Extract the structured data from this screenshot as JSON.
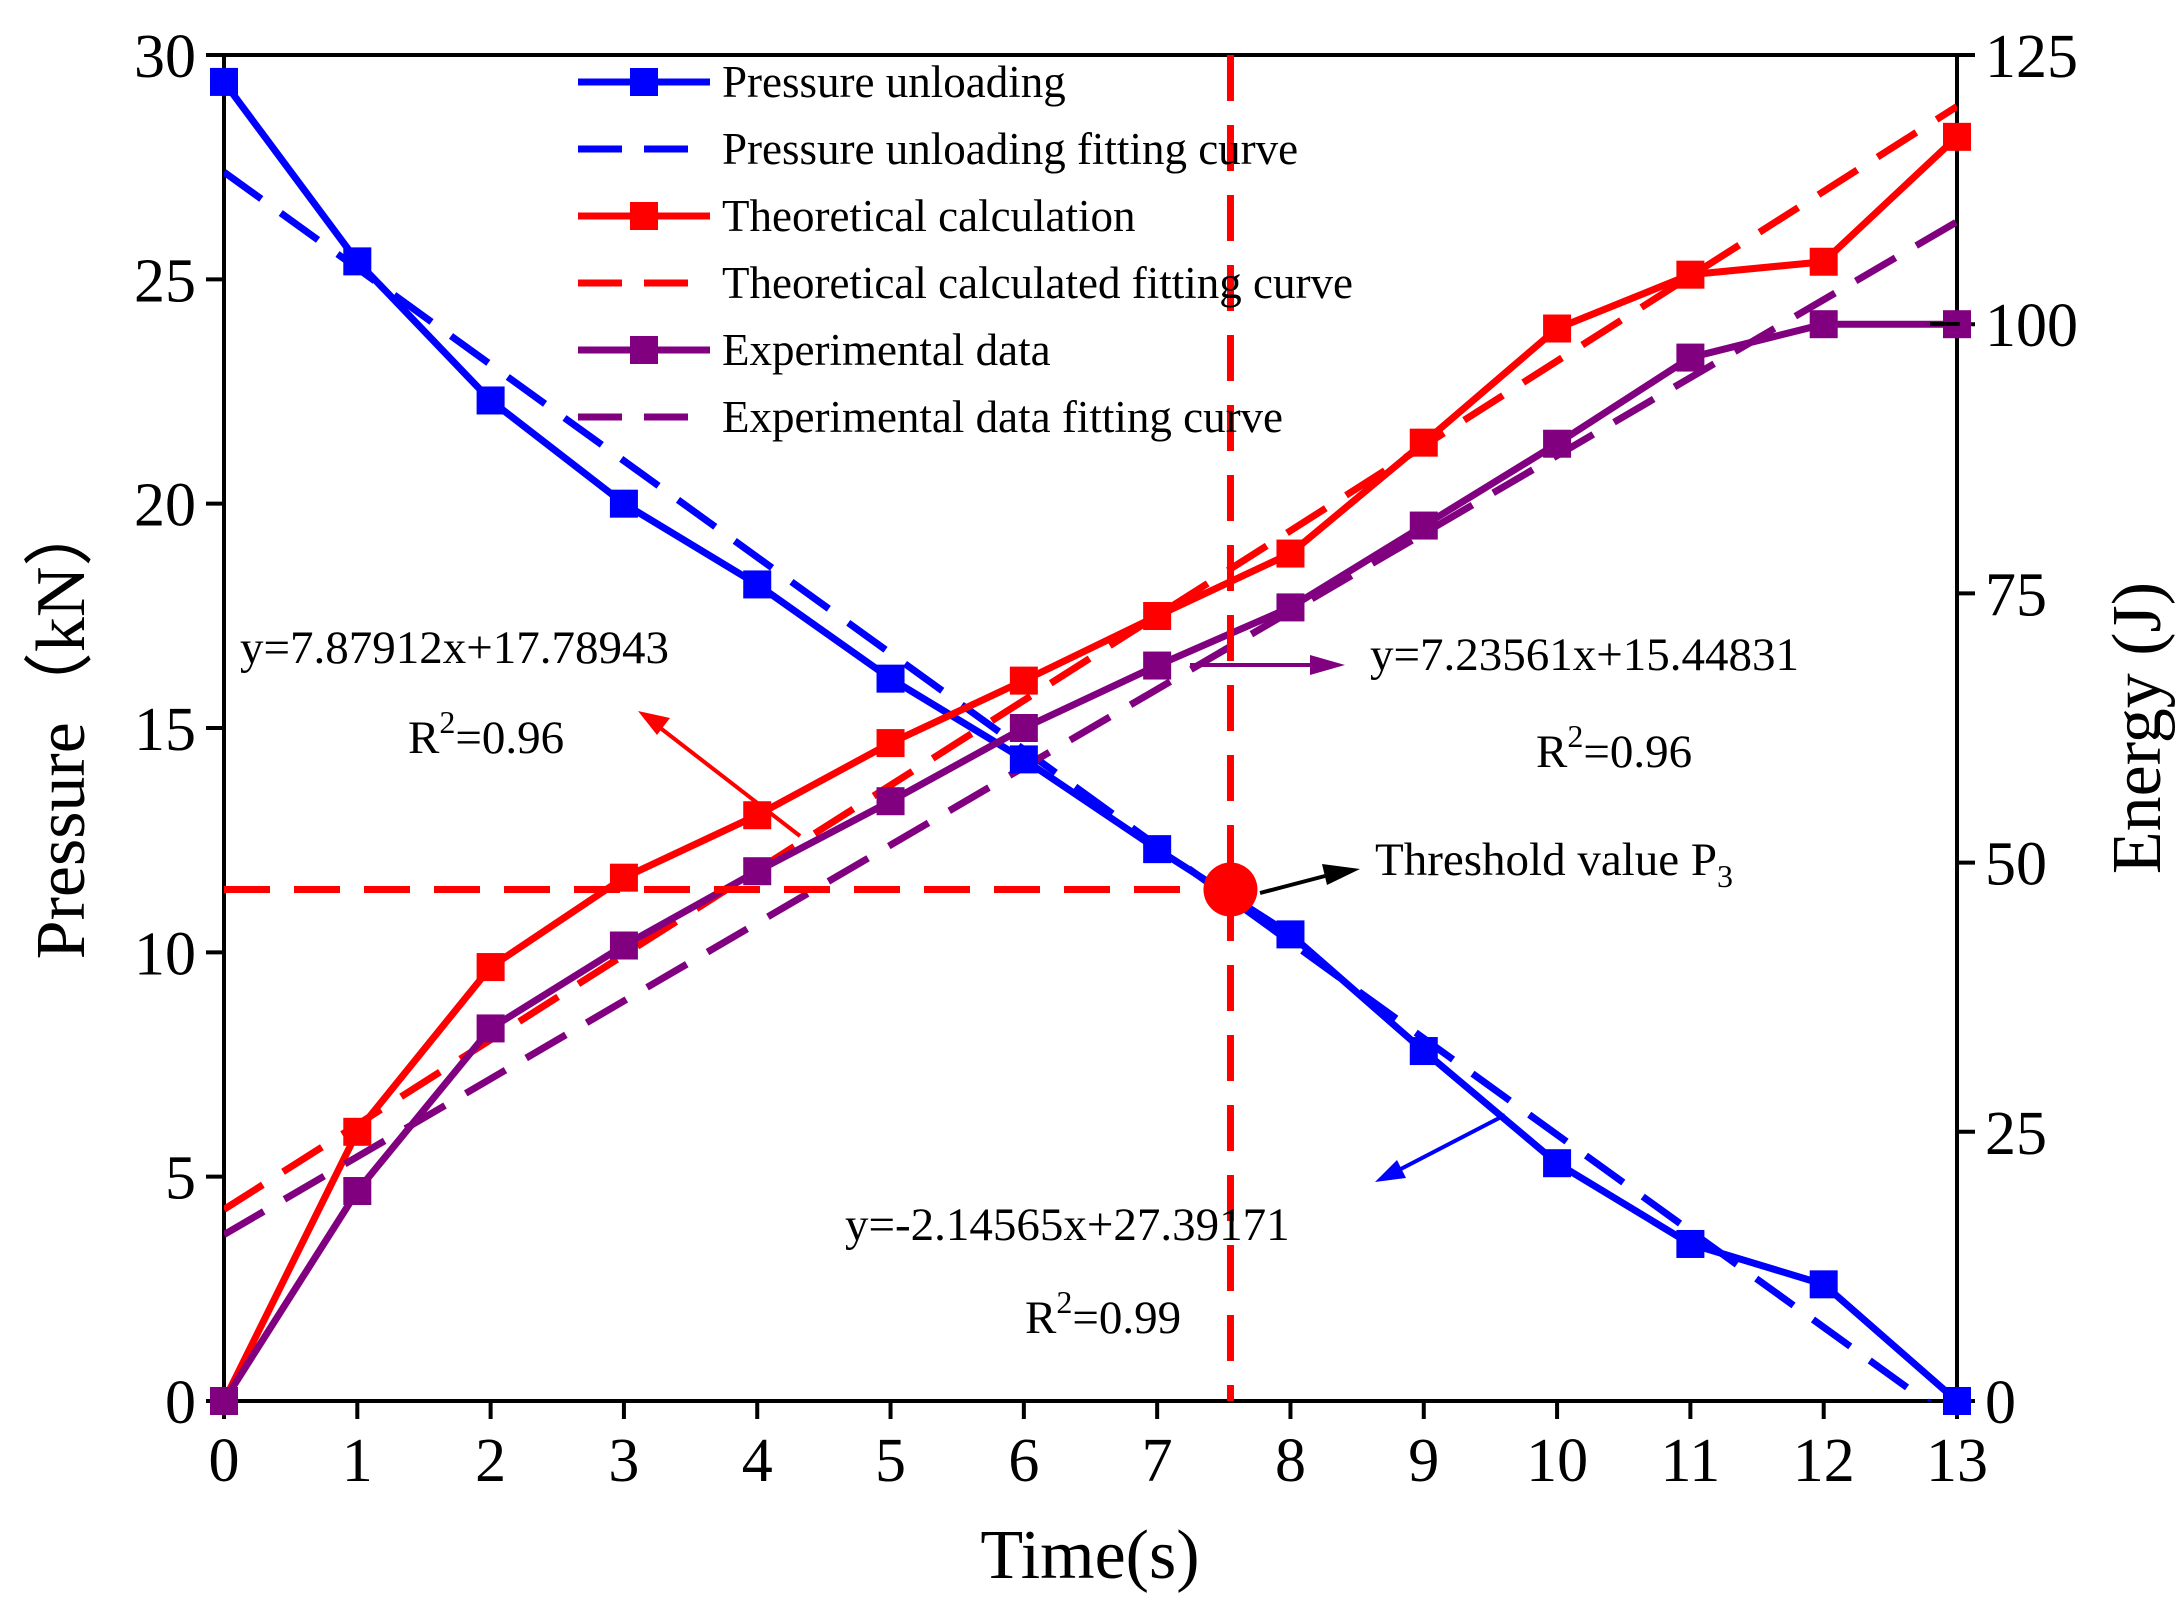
{
  "chart_data": {
    "type": "line",
    "x_axis": {
      "label": "Time(s)",
      "range": [
        0,
        13
      ],
      "ticks": [
        "0",
        "1",
        "2",
        "3",
        "4",
        "5",
        "6",
        "7",
        "8",
        "9",
        "10",
        "11",
        "12",
        "13"
      ]
    },
    "y_axis_left": {
      "label": "Pressure（kN）",
      "range": [
        0,
        30
      ],
      "ticks": [
        "0",
        "5",
        "10",
        "15",
        "20",
        "25",
        "30"
      ]
    },
    "y_axis_right": {
      "label": "Energy (J)",
      "range": [
        0,
        125
      ],
      "ticks": [
        "0",
        "25",
        "50",
        "75",
        "100",
        "125"
      ]
    },
    "series": [
      {
        "name": "Pressure unloading",
        "axis": "left",
        "style": "solid-marker",
        "color": "#0000ff",
        "x": [
          0,
          1,
          2,
          3,
          4,
          5,
          6,
          7,
          8,
          9,
          10,
          11,
          12,
          13
        ],
        "y": [
          29.4,
          25.4,
          22.3,
          20.0,
          18.2,
          16.1,
          14.3,
          12.3,
          10.4,
          7.8,
          5.3,
          3.5,
          2.6,
          0.0
        ]
      },
      {
        "name": "Pressure unloading fitting curve",
        "axis": "left",
        "style": "dashed",
        "color": "#0000ff",
        "equation": {
          "slope": -2.14565,
          "intercept": 27.39171
        },
        "x_range": [
          0,
          13
        ]
      },
      {
        "name": "Theoretical calculation",
        "axis": "right",
        "style": "solid-marker",
        "color": "#ff0000",
        "x": [
          0,
          1,
          2,
          3,
          4,
          5,
          6,
          7,
          8,
          9,
          10,
          11,
          12,
          13
        ],
        "y": [
          0,
          25,
          40.3,
          48.6,
          54.4,
          61.1,
          66.9,
          72.9,
          78.7,
          89.0,
          99.6,
          104.6,
          105.8,
          117.4
        ]
      },
      {
        "name": "Theoretical calculated fitting curve",
        "axis": "right",
        "style": "dashed",
        "color": "#ff0000",
        "equation": {
          "slope": 7.87912,
          "intercept": 17.78943
        },
        "x_range": [
          0,
          13
        ]
      },
      {
        "name": "Experimental data",
        "axis": "right",
        "style": "solid-marker",
        "color": "#800080",
        "x": [
          0,
          1,
          2,
          3,
          4,
          5,
          6,
          7,
          8,
          9,
          10,
          11,
          12,
          13
        ],
        "y": [
          0,
          19.5,
          34.6,
          42.3,
          49.2,
          55.7,
          62.5,
          68.3,
          73.7,
          81.3,
          88.9,
          96.9,
          100.0,
          100.0
        ]
      },
      {
        "name": "Experimental data fitting curve",
        "axis": "right",
        "style": "dashed",
        "color": "#800080",
        "equation": {
          "slope": 7.23561,
          "intercept": 15.44831
        },
        "x_range": [
          0,
          13
        ]
      }
    ],
    "legend": {
      "position": "top-center"
    },
    "threshold": {
      "label": "Threshold value P",
      "subscript": "3",
      "x": 7.55,
      "y": 11.4,
      "color": "#ff0000"
    },
    "annotations": [
      {
        "id": "theoretical",
        "line1": "y=7.87912x+17.78943",
        "r2_prefix": "R",
        "r2_sup": "2",
        "r2_value": "=0.96",
        "color": "#ff0000"
      },
      {
        "id": "experimental",
        "line1": "y=7.23561x+15.44831",
        "r2_prefix": "R",
        "r2_sup": "2",
        "r2_value": "=0.96",
        "color": "#800080"
      },
      {
        "id": "pressure",
        "line1": "y=-2.14565x+27.39171",
        "r2_prefix": "R",
        "r2_sup": "2",
        "r2_value": "=0.99",
        "color": "#0000ff"
      }
    ]
  }
}
